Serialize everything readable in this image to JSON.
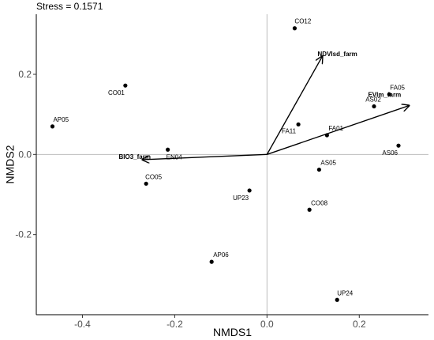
{
  "chart_data": {
    "type": "scatter",
    "title": "Stress = 0.1571",
    "xlabel": "NMDS1",
    "ylabel": "NMDS2",
    "xlim": [
      -0.5,
      0.35
    ],
    "ylim": [
      -0.4,
      0.35
    ],
    "xticks": [
      "-0.4",
      "-0.2",
      "0.0",
      "0.2"
    ],
    "yticks": [
      "-0.2",
      "0.0",
      "0.2"
    ],
    "xtick_values": [
      -0.4,
      -0.2,
      0.0,
      0.2
    ],
    "ytick_values": [
      -0.2,
      0.0,
      0.2
    ],
    "reference_lines": {
      "x": 0,
      "y": 0,
      "color": "#bdbdbd"
    },
    "grid": false,
    "points": [
      {
        "label": "CO12",
        "x": 0.06,
        "y": 0.315
      },
      {
        "label": "CO01",
        "x": -0.307,
        "y": 0.172
      },
      {
        "label": "AP05",
        "x": -0.465,
        "y": 0.07
      },
      {
        "label": "FA05",
        "x": 0.265,
        "y": 0.15
      },
      {
        "label": "AS02",
        "x": 0.232,
        "y": 0.12
      },
      {
        "label": "FA11",
        "x": 0.068,
        "y": 0.075
      },
      {
        "label": "FA01",
        "x": 0.13,
        "y": 0.048
      },
      {
        "label": "AS06",
        "x": 0.285,
        "y": 0.022
      },
      {
        "label": "EN04",
        "x": -0.215,
        "y": 0.012
      },
      {
        "label": "AS05",
        "x": 0.113,
        "y": -0.038
      },
      {
        "label": "CO05",
        "x": -0.262,
        "y": -0.073
      },
      {
        "label": "UP23",
        "x": -0.038,
        "y": -0.09
      },
      {
        "label": "CO08",
        "x": 0.092,
        "y": -0.138
      },
      {
        "label": "AP06",
        "x": -0.12,
        "y": -0.268
      },
      {
        "label": "UP24",
        "x": 0.152,
        "y": -0.363
      }
    ],
    "vectors": [
      {
        "label": "NDVIsd_farm",
        "x": 0.12,
        "y": 0.245
      },
      {
        "label": "EVIm_farm",
        "x": 0.308,
        "y": 0.122
      },
      {
        "label": "BIO3_farm",
        "x": -0.27,
        "y": -0.013
      }
    ],
    "point_color": "#000000",
    "vector_color": "#000000"
  }
}
